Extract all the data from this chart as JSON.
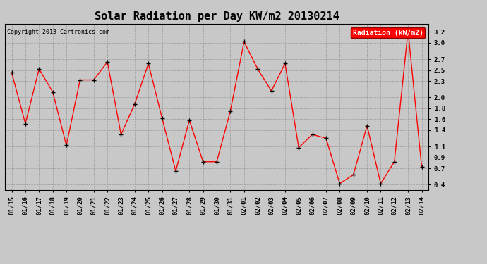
{
  "title": "Solar Radiation per Day KW/m2 20130214",
  "copyright": "Copyright 2013 Cartronics.com",
  "legend_label": "Radiation (kW/m2)",
  "background_color": "#c8c8c8",
  "plot_bg_color": "#c8c8c8",
  "line_color": "red",
  "marker_color": "black",
  "dates": [
    "01/15",
    "01/16",
    "01/17",
    "01/18",
    "01/19",
    "01/20",
    "01/21",
    "01/22",
    "01/23",
    "01/24",
    "01/25",
    "01/26",
    "01/27",
    "01/28",
    "01/29",
    "01/30",
    "01/31",
    "02/01",
    "02/02",
    "02/03",
    "02/04",
    "02/05",
    "02/06",
    "02/07",
    "02/08",
    "02/09",
    "02/10",
    "02/11",
    "02/12",
    "02/13",
    "02/14"
  ],
  "values": [
    2.45,
    1.52,
    2.52,
    2.1,
    1.12,
    2.32,
    2.32,
    2.65,
    1.32,
    1.88,
    2.62,
    1.62,
    0.65,
    1.58,
    0.82,
    0.82,
    1.75,
    3.02,
    2.52,
    2.12,
    2.62,
    1.08,
    1.32,
    1.25,
    0.42,
    0.58,
    1.48,
    0.42,
    0.82,
    3.22,
    0.72
  ],
  "ylim": [
    0.3,
    3.35
  ],
  "yticks": [
    0.4,
    0.7,
    0.9,
    1.1,
    1.4,
    1.6,
    1.8,
    2.0,
    2.3,
    2.5,
    2.7,
    3.0,
    3.2
  ],
  "title_fontsize": 11,
  "copyright_fontsize": 6,
  "tick_fontsize": 6.5,
  "legend_fontsize": 7
}
